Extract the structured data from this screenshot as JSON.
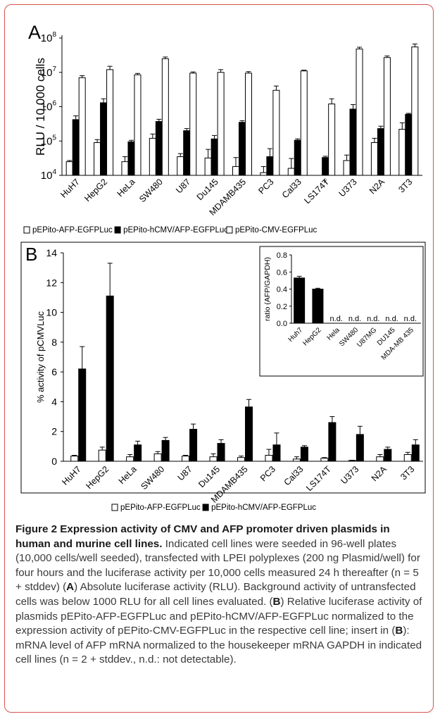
{
  "chart_data": [
    {
      "type": "bar",
      "panel_label": "A",
      "ylabel": "RLU / 10,000 cells",
      "yscale": "log",
      "ylim": [
        10000,
        100000000
      ],
      "yticks": [
        "10^4",
        "10^5",
        "10^6",
        "10^7",
        "10^8"
      ],
      "categories": [
        "HuH7",
        "HepG2",
        "HeLa",
        "SW480",
        "U87",
        "Du145",
        "MDAMB435",
        "PC3",
        "Cal33",
        "LS174T",
        "U373",
        "N2A",
        "3T3"
      ],
      "series": [
        {
          "name": "pEPito-AFP-EGFPLuc",
          "fill": "#ffffff",
          "values": [
            25000,
            90000,
            25000,
            120000,
            35000,
            32000,
            18000,
            12000,
            16000,
            10000,
            27000,
            90000,
            220000
          ],
          "errors": [
            2000,
            20000,
            10000,
            40000,
            8000,
            25000,
            15000,
            6000,
            15000,
            0,
            12000,
            30000,
            120000
          ]
        },
        {
          "name": "pEPito-hCMV/AFP-EGFPLuc",
          "fill": "#000000",
          "values": [
            420000,
            1300000,
            95000,
            370000,
            200000,
            115000,
            350000,
            35000,
            105000,
            33000,
            850000,
            230000,
            600000
          ],
          "errors": [
            120000,
            400000,
            10000,
            60000,
            30000,
            30000,
            40000,
            25000,
            10000,
            3000,
            300000,
            40000,
            40000
          ],
          "note_marks": {
            "LS174T": "x"
          }
        },
        {
          "name": "pEPito-CMV-EGFPLuc",
          "fill": "#ffffff",
          "values": [
            7000000,
            12000000,
            8500000,
            25000000,
            9500000,
            10000000,
            9500000,
            3000000,
            11000000,
            1200000,
            48000000,
            27000000,
            55000000
          ],
          "errors": [
            1000000,
            3000000,
            800000,
            3000000,
            800000,
            2000000,
            1000000,
            1000000,
            600000,
            500000,
            6000000,
            3000000,
            12000000
          ]
        }
      ],
      "legend_position": "bottom"
    },
    {
      "type": "bar",
      "panel_label": "B",
      "ylabel": "% activity of pCMVLuc",
      "ylim": [
        0,
        14
      ],
      "yticks": [
        0,
        2,
        4,
        6,
        8,
        10,
        12,
        14
      ],
      "categories": [
        "HuH7",
        "HepG2",
        "HeLa",
        "SW480",
        "U87",
        "Du145",
        "MDAMB435",
        "PC3",
        "Cal33",
        "LS174T",
        "U373",
        "N2A",
        "3T3"
      ],
      "series": [
        {
          "name": "pEPito-AFP-EGFPLuc",
          "fill": "#ffffff",
          "values": [
            0.35,
            0.75,
            0.3,
            0.5,
            0.35,
            0.3,
            0.25,
            0.4,
            0.15,
            0.2,
            0.05,
            0.3,
            0.45
          ],
          "errors": [
            0.05,
            0.2,
            0.15,
            0.15,
            0.05,
            0.2,
            0.1,
            0.4,
            0.15,
            0.05,
            0.02,
            0.15,
            0.15
          ]
        },
        {
          "name": "pEPito-hCMV/AFP-EGFPLuc",
          "fill": "#000000",
          "values": [
            6.2,
            11.1,
            1.1,
            1.4,
            2.15,
            1.2,
            3.65,
            1.1,
            0.95,
            2.6,
            1.8,
            0.8,
            1.1
          ],
          "errors": [
            1.5,
            2.2,
            0.25,
            0.2,
            0.35,
            0.25,
            0.5,
            0.8,
            0.1,
            0.4,
            0.55,
            0.15,
            0.35
          ]
        }
      ],
      "legend_position": "bottom",
      "inset": {
        "type": "bar",
        "ylabel": "ratio (AFP/GAPDH)",
        "ylim": [
          0,
          0.8
        ],
        "yticks": [
          "0.0",
          "0.2",
          "0.4",
          "0.6",
          "0.8"
        ],
        "categories": [
          "Huh7",
          "HepG2",
          "Hela",
          "SW480",
          "U87MG",
          "DU145",
          "MDA-MB 435"
        ],
        "values": [
          0.53,
          0.4,
          0,
          0,
          0,
          0,
          0
        ],
        "errors": [
          0.02,
          0.01,
          0,
          0,
          0,
          0,
          0
        ],
        "labels": [
          "",
          "",
          "n.d.",
          "n.d.",
          "n.d.",
          "n.d.",
          "n.d."
        ],
        "fill": "#000000"
      }
    }
  ],
  "caption": {
    "title": "Figure 2 Expression activity of CMV and AFP promoter driven plasmids in human and murine cell lines.",
    "part1": " Indicated cell lines were seeded in 96-well plates (10,000 cells/well seeded), transfected with LPEI polyplexes (200 ng Plasmid/well) for four hours and the luciferase activity per 10,000 cells measured 24 h thereafter (n = 5 + stddev) (",
    "ref_a": "A",
    "part2": ") Absolute luciferase activity (RLU). Background activity of untransfected cells was below 1000 RLU for all cell lines evaluated. (",
    "ref_b1": "B",
    "part3": ") Relative luciferase activity of plasmids pEPito-AFP-EGFPLuc and pEPito-hCMV/AFP-EGFPLuc normalized to the expression activity of pEPito-CMV-EGFPLuc in the respective cell line; insert in (",
    "ref_b2": "B",
    "part4": "): mRNA level of AFP mRNA normalized to the housekeeper mRNA GAPDH in indicated cell lines (n = 2 + stddev., n.d.: not detectable)."
  },
  "colors": {
    "frame_border": "#d9534f",
    "bar_dark": "#000000",
    "bar_light": "#ffffff"
  }
}
